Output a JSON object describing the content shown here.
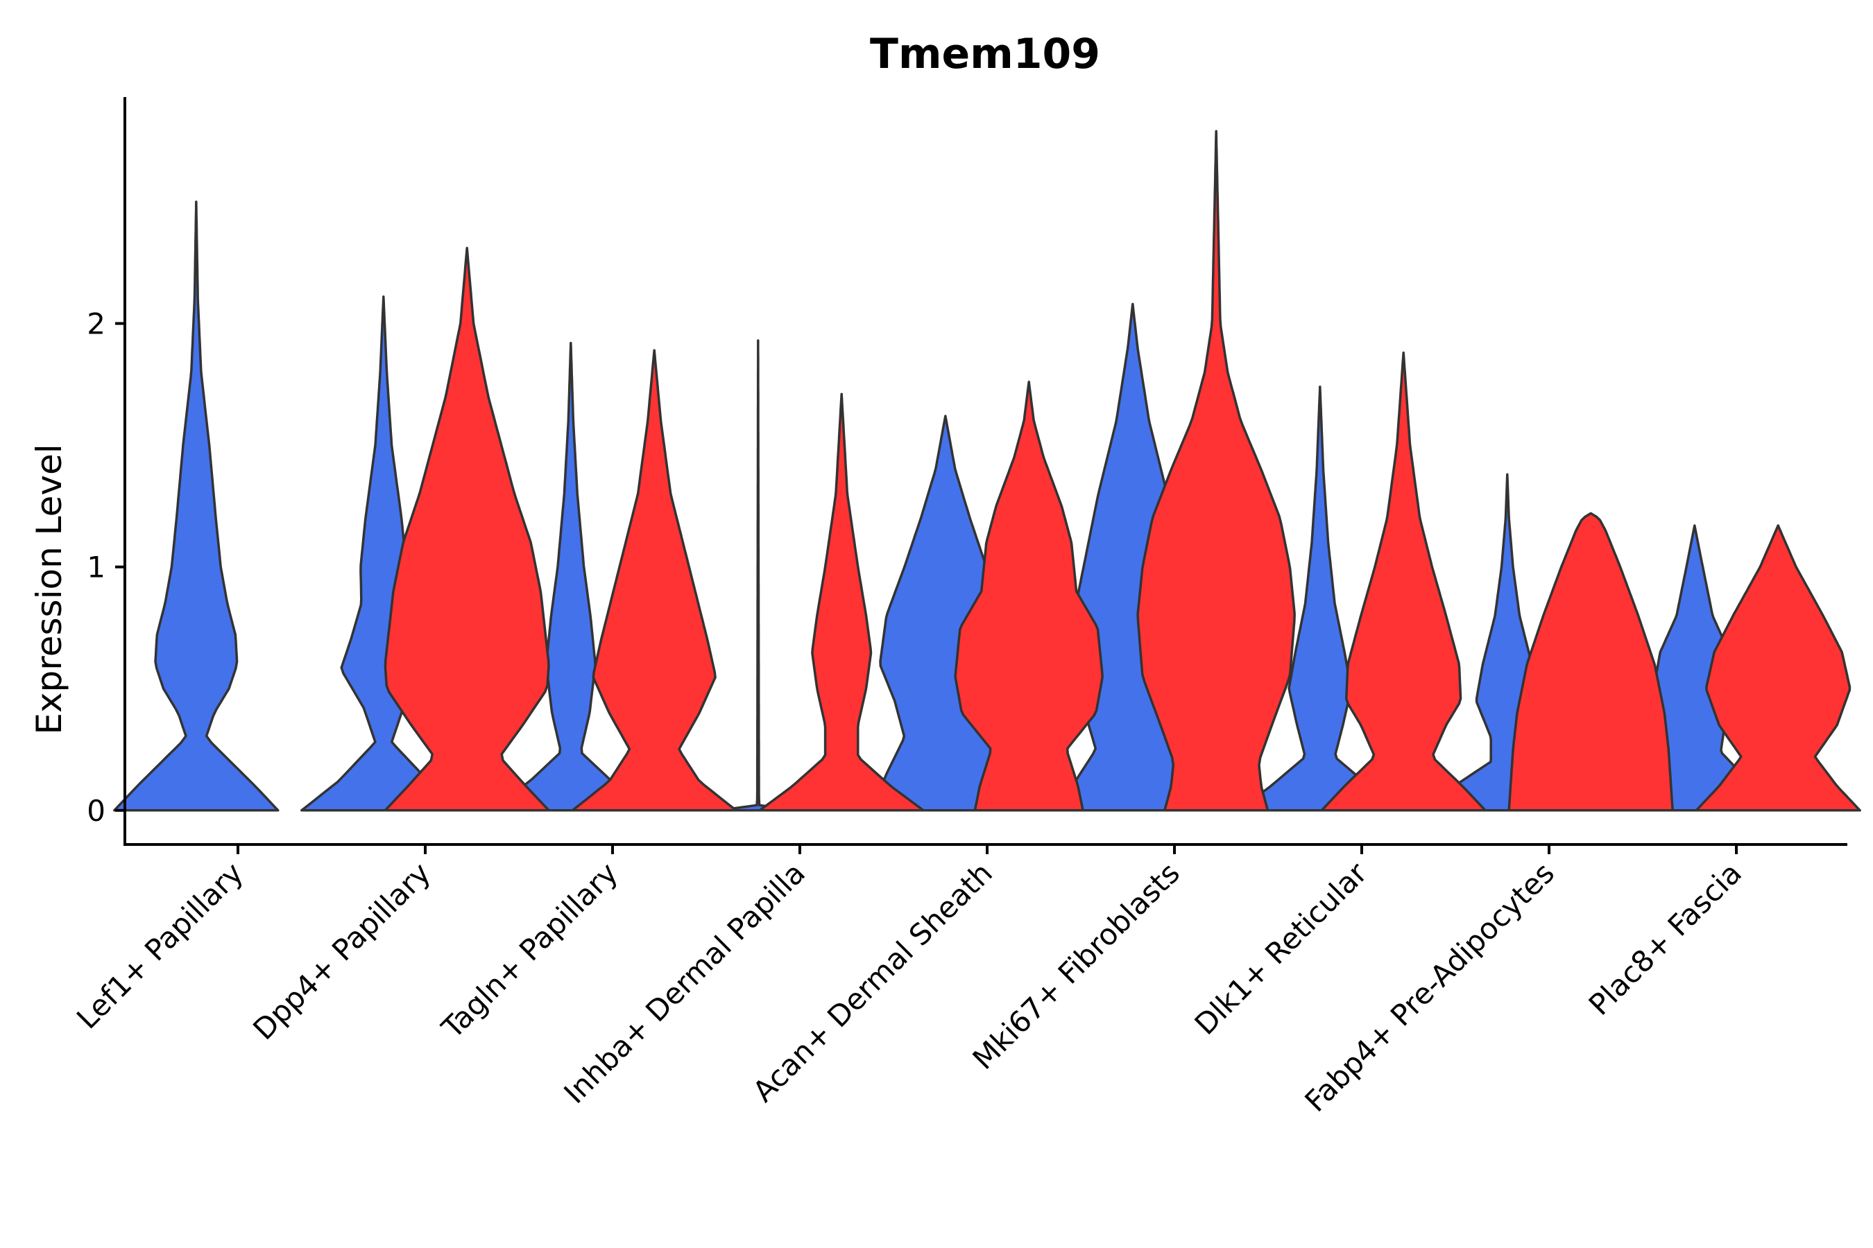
{
  "chart_data": {
    "type": "violin",
    "title": "Tmem109",
    "xlabel": "",
    "ylabel": "Expression Level",
    "ylim": [
      -0.14,
      2.93
    ],
    "yticks": [
      0,
      1,
      2
    ],
    "grid": false,
    "legend": "none",
    "colors": {
      "blue": "#4472EB",
      "red": "#FF3333",
      "outline": "#333333"
    },
    "categories": [
      "Lef1+ Papillary",
      "Dpp4+ Papillary",
      "Tagln+ Papillary",
      "Inhba+ Dermal Papilla",
      "Acan+ Dermal Sheath",
      "Mki67+ Fibroblasts",
      "Dlk1+ Reticular",
      "Fabp4+ Pre-Adipocytes",
      "Plac8+ Fascia"
    ],
    "series": [
      {
        "name": "blue",
        "color": "#4472EB",
        "violins": [
          {
            "category": "Lef1+ Papillary",
            "max": 2.5,
            "profile": [
              [
                0,
                1.0
              ],
              [
                0.1,
                0.72
              ],
              [
                0.2,
                0.42
              ],
              [
                0.3,
                0.12
              ],
              [
                0.4,
                0.22
              ],
              [
                0.5,
                0.4
              ],
              [
                0.6,
                0.5
              ],
              [
                0.72,
                0.48
              ],
              [
                0.85,
                0.38
              ],
              [
                1.0,
                0.3
              ],
              [
                1.2,
                0.24
              ],
              [
                1.5,
                0.16
              ],
              [
                1.8,
                0.06
              ],
              [
                2.1,
                0.02
              ],
              [
                2.5,
                0.0
              ]
            ]
          },
          {
            "category": "Dpp4+ Papillary",
            "max": 2.11,
            "profile": [
              [
                0,
                1.0
              ],
              [
                0.12,
                0.55
              ],
              [
                0.28,
                0.1
              ],
              [
                0.42,
                0.24
              ],
              [
                0.58,
                0.52
              ],
              [
                0.7,
                0.4
              ],
              [
                0.85,
                0.27
              ],
              [
                1.0,
                0.28
              ],
              [
                1.2,
                0.22
              ],
              [
                1.5,
                0.1
              ],
              [
                1.8,
                0.04
              ],
              [
                2.11,
                0.0
              ]
            ]
          },
          {
            "category": "Tagln+ Papillary",
            "max": 1.92,
            "profile": [
              [
                0,
                1.0
              ],
              [
                0.12,
                0.5
              ],
              [
                0.24,
                0.12
              ],
              [
                0.4,
                0.23
              ],
              [
                0.6,
                0.3
              ],
              [
                0.8,
                0.24
              ],
              [
                1.0,
                0.16
              ],
              [
                1.3,
                0.08
              ],
              [
                1.6,
                0.03
              ],
              [
                1.92,
                0.0
              ]
            ]
          },
          {
            "category": "Inhba+ Dermal Papilla",
            "max": 1.93,
            "profile": [
              [
                0,
                0.48
              ],
              [
                0.005,
                0.02
              ],
              [
                0.05,
                0.01
              ],
              [
                1.93,
                0.0
              ]
            ]
          },
          {
            "category": "Acan+ Dermal Sheath",
            "max": 1.62,
            "profile": [
              [
                0,
                0.9
              ],
              [
                0.15,
                0.72
              ],
              [
                0.3,
                0.5
              ],
              [
                0.45,
                0.62
              ],
              [
                0.6,
                0.8
              ],
              [
                0.8,
                0.72
              ],
              [
                1.0,
                0.5
              ],
              [
                1.2,
                0.3
              ],
              [
                1.4,
                0.12
              ],
              [
                1.62,
                0.0
              ]
            ]
          },
          {
            "category": "Mki67+ Fibroblasts",
            "max": 2.08,
            "profile": [
              [
                0,
                0.85
              ],
              [
                0.12,
                0.7
              ],
              [
                0.25,
                0.45
              ],
              [
                0.4,
                0.58
              ],
              [
                0.55,
                0.72
              ],
              [
                0.75,
                0.75
              ],
              [
                1.0,
                0.6
              ],
              [
                1.3,
                0.42
              ],
              [
                1.6,
                0.2
              ],
              [
                1.9,
                0.06
              ],
              [
                2.08,
                0.0
              ]
            ]
          },
          {
            "category": "Dlk1+ Reticular",
            "max": 1.74,
            "profile": [
              [
                0,
                1.0
              ],
              [
                0.1,
                0.6
              ],
              [
                0.22,
                0.18
              ],
              [
                0.35,
                0.28
              ],
              [
                0.5,
                0.38
              ],
              [
                0.65,
                0.3
              ],
              [
                0.85,
                0.18
              ],
              [
                1.1,
                0.1
              ],
              [
                1.4,
                0.04
              ],
              [
                1.74,
                0.0
              ]
            ]
          },
          {
            "category": "Fabp4+ Pre-Adipocytes",
            "max": 1.38,
            "profile": [
              [
                0,
                1.0
              ],
              [
                0.1,
                0.65
              ],
              [
                0.2,
                0.2
              ],
              [
                0.3,
                0.2
              ],
              [
                0.45,
                0.38
              ],
              [
                0.6,
                0.3
              ],
              [
                0.8,
                0.15
              ],
              [
                1.0,
                0.07
              ],
              [
                1.2,
                0.02
              ],
              [
                1.38,
                0.0
              ]
            ]
          },
          {
            "category": "Plac8+ Fascia",
            "max": 1.17,
            "profile": [
              [
                0,
                1.0
              ],
              [
                0.1,
                0.72
              ],
              [
                0.24,
                0.32
              ],
              [
                0.38,
                0.38
              ],
              [
                0.5,
                0.5
              ],
              [
                0.65,
                0.42
              ],
              [
                0.8,
                0.22
              ],
              [
                1.0,
                0.1
              ],
              [
                1.17,
                0.0
              ]
            ]
          }
        ]
      },
      {
        "name": "red",
        "color": "#FF3333",
        "violins": [
          {
            "category": "Dpp4+ Papillary",
            "max": 2.31,
            "profile": [
              [
                0,
                1.0
              ],
              [
                0.1,
                0.72
              ],
              [
                0.22,
                0.4
              ],
              [
                0.35,
                0.68
              ],
              [
                0.5,
                0.98
              ],
              [
                0.6,
                1.0
              ],
              [
                0.75,
                0.95
              ],
              [
                0.9,
                0.9
              ],
              [
                1.1,
                0.78
              ],
              [
                1.3,
                0.58
              ],
              [
                1.5,
                0.42
              ],
              [
                1.7,
                0.26
              ],
              [
                2.0,
                0.08
              ],
              [
                2.31,
                0.0
              ]
            ]
          },
          {
            "category": "Tagln+ Papillary",
            "max": 1.89,
            "profile": [
              [
                0,
                1.0
              ],
              [
                0.12,
                0.55
              ],
              [
                0.25,
                0.3
              ],
              [
                0.4,
                0.55
              ],
              [
                0.55,
                0.75
              ],
              [
                0.7,
                0.65
              ],
              [
                0.9,
                0.5
              ],
              [
                1.1,
                0.35
              ],
              [
                1.3,
                0.2
              ],
              [
                1.6,
                0.08
              ],
              [
                1.89,
                0.0
              ]
            ]
          },
          {
            "category": "Inhba+ Dermal Papilla",
            "max": 1.71,
            "profile": [
              [
                0,
                1.0
              ],
              [
                0.1,
                0.6
              ],
              [
                0.22,
                0.2
              ],
              [
                0.35,
                0.2
              ],
              [
                0.5,
                0.3
              ],
              [
                0.65,
                0.36
              ],
              [
                0.8,
                0.3
              ],
              [
                1.0,
                0.2
              ],
              [
                1.3,
                0.07
              ],
              [
                1.71,
                0.0
              ]
            ]
          },
          {
            "category": "Acan+ Dermal Sheath",
            "max": 1.76,
            "profile": [
              [
                0,
                0.66
              ],
              [
                0.1,
                0.6
              ],
              [
                0.25,
                0.46
              ],
              [
                0.4,
                0.82
              ],
              [
                0.55,
                0.9
              ],
              [
                0.75,
                0.84
              ],
              [
                0.9,
                0.58
              ],
              [
                1.1,
                0.52
              ],
              [
                1.25,
                0.4
              ],
              [
                1.45,
                0.18
              ],
              [
                1.6,
                0.06
              ],
              [
                1.76,
                0.0
              ]
            ]
          },
          {
            "category": "Mki67+ Fibroblasts",
            "max": 2.79,
            "profile": [
              [
                0,
                0.63
              ],
              [
                0.1,
                0.55
              ],
              [
                0.2,
                0.52
              ],
              [
                0.35,
                0.68
              ],
              [
                0.55,
                0.9
              ],
              [
                0.8,
                0.96
              ],
              [
                1.0,
                0.9
              ],
              [
                1.2,
                0.78
              ],
              [
                1.4,
                0.55
              ],
              [
                1.6,
                0.3
              ],
              [
                1.8,
                0.14
              ],
              [
                2.0,
                0.05
              ],
              [
                2.79,
                0.0
              ]
            ]
          },
          {
            "category": "Dlk1+ Reticular",
            "max": 1.88,
            "profile": [
              [
                0,
                1.0
              ],
              [
                0.1,
                0.72
              ],
              [
                0.22,
                0.35
              ],
              [
                0.35,
                0.52
              ],
              [
                0.45,
                0.7
              ],
              [
                0.6,
                0.68
              ],
              [
                0.8,
                0.52
              ],
              [
                1.0,
                0.35
              ],
              [
                1.2,
                0.2
              ],
              [
                1.5,
                0.08
              ],
              [
                1.88,
                0.0
              ]
            ]
          },
          {
            "category": "Fabp4+ Pre-Adipocytes",
            "max": 1.22,
            "profile": [
              [
                0,
                1.0
              ],
              [
                0.1,
                0.98
              ],
              [
                0.25,
                0.95
              ],
              [
                0.4,
                0.9
              ],
              [
                0.6,
                0.78
              ],
              [
                0.8,
                0.58
              ],
              [
                1.0,
                0.36
              ],
              [
                1.15,
                0.18
              ],
              [
                1.2,
                0.1
              ],
              [
                1.22,
                0.0
              ]
            ]
          },
          {
            "category": "Plac8+ Fascia",
            "max": 1.17,
            "profile": [
              [
                0,
                1.0
              ],
              [
                0.1,
                0.72
              ],
              [
                0.22,
                0.45
              ],
              [
                0.35,
                0.72
              ],
              [
                0.5,
                0.88
              ],
              [
                0.65,
                0.78
              ],
              [
                0.8,
                0.55
              ],
              [
                1.0,
                0.22
              ],
              [
                1.17,
                0.0
              ]
            ]
          }
        ]
      }
    ]
  }
}
